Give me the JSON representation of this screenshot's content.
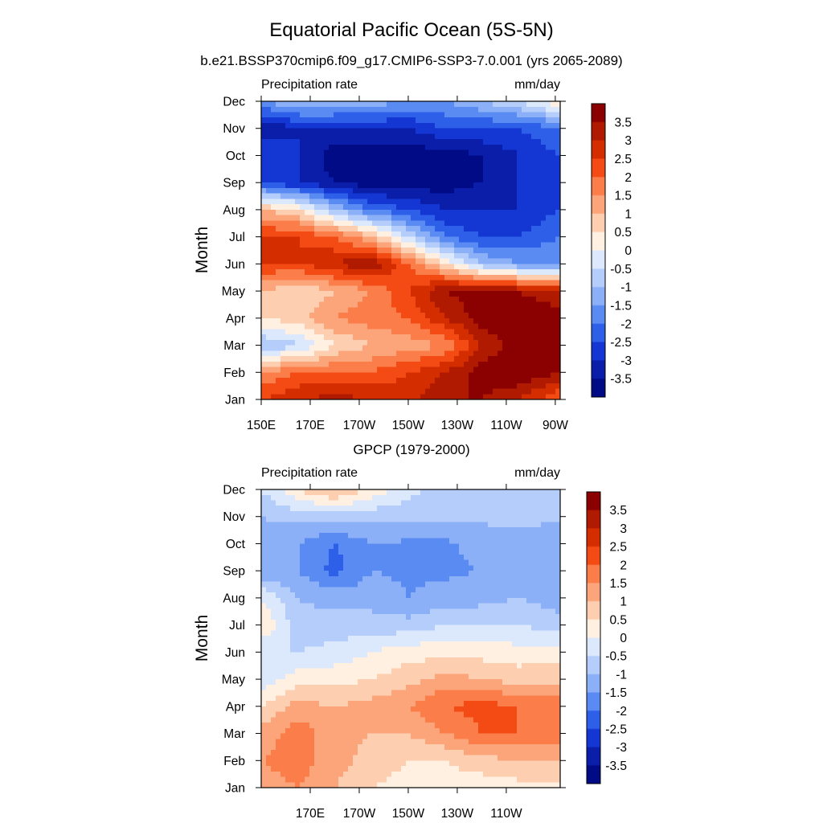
{
  "figure": {
    "title": "Equatorial Pacific Ocean (5S-5N)"
  },
  "colorbar": {
    "labels": [
      "3.5",
      "3",
      "2.5",
      "2",
      "1.5",
      "1",
      "0.5",
      "0",
      "-0.5",
      "-1",
      "-1.5",
      "-2",
      "-2.5",
      "-3",
      "-3.5"
    ],
    "colors_top_to_bottom": [
      "#8b0000",
      "#b01a00",
      "#d42e00",
      "#f44a14",
      "#fb7d4a",
      "#fca57b",
      "#fdcfb0",
      "#fff0e1",
      "#dce9fc",
      "#b4cdfa",
      "#8cb0f7",
      "#5a8bf2",
      "#2d5fe8",
      "#1436d2",
      "#0a1eaa",
      "#000b85"
    ]
  },
  "chart_data": [
    {
      "type": "heatmap",
      "panel": "top",
      "title": "b.e21.BSSP370cmip6.f09_g17.CMIP6-SSP3-7.0.001 (yrs 2065-2089)",
      "left_label": "Precipitation rate",
      "right_label": "mm/day",
      "ylabel": "Month",
      "xlabel": "",
      "x_tick_labels": [
        "150E",
        "170E",
        "170W",
        "150W",
        "130W",
        "110W",
        "90W"
      ],
      "x_ticks_lon": [
        150,
        170,
        190,
        210,
        230,
        250,
        270
      ],
      "y_tick_labels": [
        "Jan",
        "Feb",
        "Mar",
        "Apr",
        "May",
        "Jun",
        "Jul",
        "Aug",
        "Sep",
        "Oct",
        "Nov",
        "Dec"
      ],
      "xlim": [
        150,
        272
      ],
      "units": "mm/day",
      "contour_levels": [
        -3.5,
        -3,
        -2.5,
        -2,
        -1.5,
        -1,
        -0.5,
        0,
        0.5,
        1,
        1.5,
        2,
        2.5,
        3,
        3.5
      ],
      "lon_grid": [
        150,
        165,
        180,
        195,
        210,
        225,
        240,
        255,
        272
      ],
      "values_by_month": [
        [
          2.5,
          3.0,
          3.2,
          3.0,
          2.8,
          3.5,
          3.5,
          3.0,
          2.0
        ],
        [
          1.5,
          2.0,
          2.0,
          2.0,
          2.5,
          3.0,
          3.8,
          4.0,
          3.5
        ],
        [
          -1.0,
          -0.6,
          0.5,
          1.0,
          1.2,
          1.5,
          3.0,
          3.8,
          4.0
        ],
        [
          0.5,
          0.8,
          1.5,
          1.8,
          2.0,
          3.0,
          3.8,
          4.0,
          3.8
        ],
        [
          1.0,
          0.5,
          1.0,
          1.5,
          2.5,
          3.5,
          3.8,
          3.5,
          3.0
        ],
        [
          2.5,
          2.5,
          3.0,
          3.5,
          2.0,
          0.5,
          -1.0,
          -1.5,
          -1.5
        ],
        [
          2.5,
          2.5,
          2.0,
          1.0,
          -0.5,
          -2.0,
          -2.5,
          -2.5,
          -2.0
        ],
        [
          1.0,
          0.5,
          -1.0,
          -2.0,
          -2.5,
          -3.0,
          -3.0,
          -3.0,
          -2.5
        ],
        [
          -2.5,
          -3.0,
          -3.5,
          -3.8,
          -3.8,
          -3.8,
          -3.5,
          -3.0,
          -2.5
        ],
        [
          -2.5,
          -3.0,
          -3.8,
          -3.8,
          -3.8,
          -3.8,
          -3.5,
          -3.0,
          -2.5
        ],
        [
          -3.5,
          -3.0,
          -3.0,
          -3.0,
          -3.0,
          -2.5,
          -2.5,
          -2.5,
          -2.0
        ],
        [
          -1.5,
          -1.0,
          -1.0,
          -1.2,
          -1.5,
          -1.5,
          -1.0,
          -0.5,
          0.5
        ]
      ]
    },
    {
      "type": "heatmap",
      "panel": "bottom",
      "title": "GPCP (1979-2000)",
      "left_label": "Precipitation rate",
      "right_label": "mm/day",
      "ylabel": "Month",
      "xlabel": "",
      "x_tick_labels": [
        "170E",
        "170W",
        "150W",
        "130W",
        "110W"
      ],
      "x_ticks_lon": [
        170,
        190,
        210,
        230,
        250
      ],
      "y_tick_labels": [
        "Jan",
        "Feb",
        "Mar",
        "Apr",
        "May",
        "Jun",
        "Jul",
        "Aug",
        "Sep",
        "Oct",
        "Nov",
        "Dec"
      ],
      "xlim": [
        150,
        272
      ],
      "units": "mm/day",
      "contour_levels": [
        -3.5,
        -3,
        -2.5,
        -2,
        -1.5,
        -1,
        -0.5,
        0,
        0.5,
        1,
        1.5,
        2,
        2.5,
        3,
        3.5
      ],
      "lon_grid": [
        150,
        165,
        180,
        195,
        210,
        225,
        240,
        255,
        272
      ],
      "values_by_month": [
        [
          1.2,
          1.5,
          1.0,
          0.5,
          0.3,
          0.2,
          0.2,
          0.3,
          0.3
        ],
        [
          1.5,
          1.8,
          1.2,
          0.8,
          0.5,
          0.5,
          0.8,
          1.0,
          1.0
        ],
        [
          1.2,
          1.8,
          1.2,
          1.0,
          1.0,
          1.5,
          2.0,
          2.0,
          1.8
        ],
        [
          0.5,
          1.2,
          1.0,
          1.2,
          1.5,
          2.0,
          2.2,
          2.0,
          2.0
        ],
        [
          -0.3,
          0.3,
          0.3,
          0.5,
          0.8,
          1.2,
          1.0,
          0.8,
          0.8
        ],
        [
          -0.5,
          -0.5,
          -0.3,
          0.0,
          0.3,
          0.3,
          0.3,
          0.2,
          0.2
        ],
        [
          0.5,
          -0.8,
          -0.8,
          -0.8,
          -0.8,
          -0.5,
          -0.5,
          -0.5,
          -0.8
        ],
        [
          0.0,
          -1.0,
          -1.2,
          -1.2,
          -1.5,
          -1.3,
          -1.2,
          -1.0,
          -1.3
        ],
        [
          -1.5,
          -1.5,
          -2.2,
          -1.5,
          -1.6,
          -1.6,
          -1.5,
          -1.2,
          -1.5
        ],
        [
          -1.2,
          -1.5,
          -2.0,
          -1.5,
          -1.6,
          -1.6,
          -1.3,
          -1.2,
          -1.5
        ],
        [
          -1.0,
          -0.8,
          -0.8,
          -0.8,
          -0.8,
          -0.9,
          -0.9,
          -0.8,
          -0.9
        ],
        [
          -0.5,
          0.5,
          1.2,
          0.3,
          -0.3,
          -0.8,
          -0.8,
          -0.8,
          -0.8
        ]
      ]
    }
  ]
}
